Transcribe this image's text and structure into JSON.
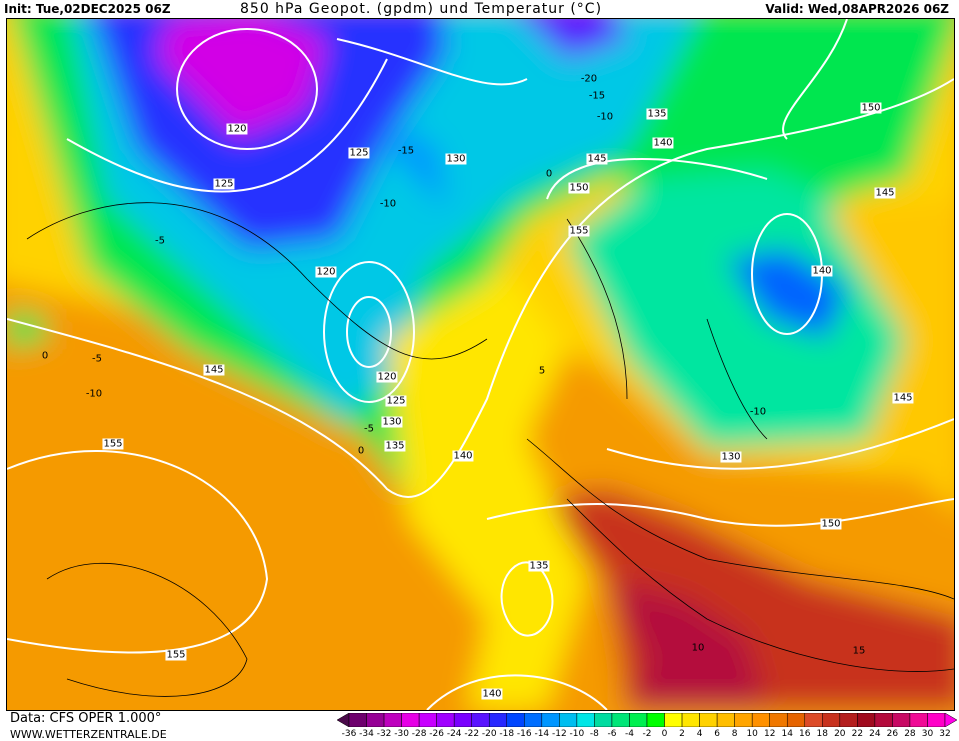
{
  "header": {
    "init": "Init: Tue,02DEC2025 06Z",
    "title": "850 hPa Geopot. (gpdm) und Temperatur (°C)",
    "valid": "Valid: Wed,08APR2026 06Z"
  },
  "footer": {
    "source": "Data: CFS OPER 1.000°",
    "site": "WWW.WETTERZENTRALE.DE"
  },
  "colorbar": {
    "ticks": [
      "-36",
      "-34",
      "-32",
      "-30",
      "-28",
      "-26",
      "-24",
      "-22",
      "-20",
      "-18",
      "-16",
      "-14",
      "-12",
      "-10",
      "-8",
      "-6",
      "-4",
      "-2",
      "0",
      "2",
      "4",
      "6",
      "8",
      "10",
      "12",
      "14",
      "16",
      "18",
      "20",
      "22",
      "24",
      "26",
      "28",
      "30",
      "32"
    ],
    "colors": [
      "#4a0a4a",
      "#6e006e",
      "#960096",
      "#be00be",
      "#e600e6",
      "#c800ff",
      "#a000ff",
      "#7a00ff",
      "#5a14ff",
      "#2828ff",
      "#0046ff",
      "#006eff",
      "#0096ff",
      "#00bef0",
      "#00e6e6",
      "#00dca0",
      "#00e678",
      "#00f050",
      "#00ff00",
      "#ffff00",
      "#ffe600",
      "#ffd200",
      "#ffbe00",
      "#ffa500",
      "#ff9100",
      "#f07800",
      "#e66400",
      "#dc4b28",
      "#c8321e",
      "#b41e1e",
      "#a00a1e",
      "#b40a3c",
      "#c80a64",
      "#f00a96",
      "#ff00c8",
      "#ff00e6"
    ]
  },
  "geopotential_labels": [
    "120",
    "125",
    "125",
    "130",
    "135",
    "140",
    "145",
    "150",
    "155",
    "150",
    "145",
    "140",
    "120",
    "120",
    "125",
    "130",
    "135",
    "140",
    "145",
    "155",
    "145",
    "130",
    "150",
    "135",
    "155",
    "140"
  ],
  "temperature_labels": [
    "-20",
    "-15",
    "-10",
    "-15",
    "-10",
    "-5",
    "0",
    "-5",
    "0",
    "-10",
    "-5",
    "0",
    "5",
    "-10",
    "10",
    "15"
  ]
}
